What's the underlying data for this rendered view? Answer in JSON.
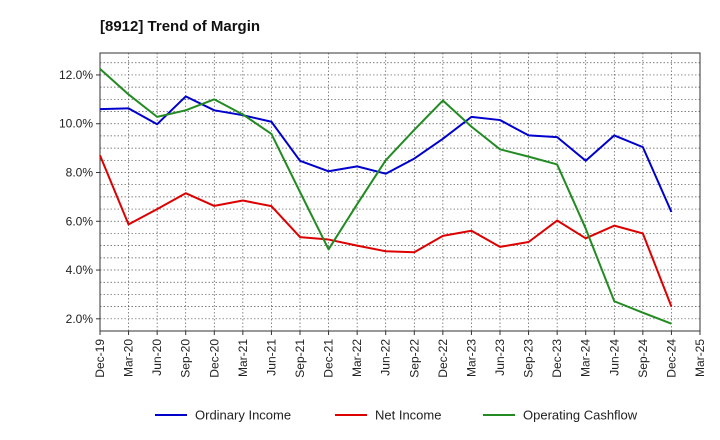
{
  "chart_data": {
    "type": "line",
    "title": "[8912]  Trend of Margin",
    "xlabel": "",
    "ylabel": "",
    "x": [
      "Dec-19",
      "Mar-20",
      "Jun-20",
      "Sep-20",
      "Dec-20",
      "Mar-21",
      "Jun-21",
      "Sep-21",
      "Dec-21",
      "Mar-22",
      "Jun-22",
      "Sep-22",
      "Dec-22",
      "Mar-23",
      "Jun-23",
      "Sep-23",
      "Dec-23",
      "Mar-24",
      "Jun-24",
      "Sep-24",
      "Dec-24",
      "Mar-25"
    ],
    "ylim": [
      1.5,
      12.9
    ],
    "yticks": [
      2.0,
      4.0,
      6.0,
      8.0,
      10.0,
      12.0
    ],
    "ytick_labels": [
      "2.0%",
      "4.0%",
      "6.0%",
      "8.0%",
      "10.0%",
      "12.0%"
    ],
    "grid": true,
    "legend_position": "bottom",
    "series": [
      {
        "name": "Ordinary Income",
        "color": "#0000cc",
        "values": [
          10.6,
          10.63,
          9.98,
          11.12,
          10.55,
          10.35,
          10.08,
          8.48,
          8.05,
          8.25,
          7.95,
          8.57,
          9.38,
          10.28,
          10.15,
          9.52,
          9.45,
          8.48,
          9.52,
          9.04,
          6.38,
          null
        ]
      },
      {
        "name": "Net Income",
        "color": "#dd0000",
        "values": [
          8.7,
          5.87,
          6.5,
          7.15,
          6.63,
          6.85,
          6.62,
          5.35,
          5.25,
          5.0,
          4.77,
          4.73,
          5.4,
          5.61,
          4.95,
          5.15,
          6.03,
          5.3,
          5.82,
          5.5,
          2.5,
          null
        ]
      },
      {
        "name": "Operating Cashflow",
        "color": "#228b22",
        "values": [
          12.25,
          11.2,
          10.28,
          10.55,
          11.0,
          10.38,
          9.58,
          7.2,
          4.85,
          6.7,
          8.5,
          9.75,
          10.95,
          9.88,
          8.95,
          8.65,
          8.33,
          5.7,
          2.72,
          2.25,
          1.8,
          null
        ]
      }
    ]
  }
}
